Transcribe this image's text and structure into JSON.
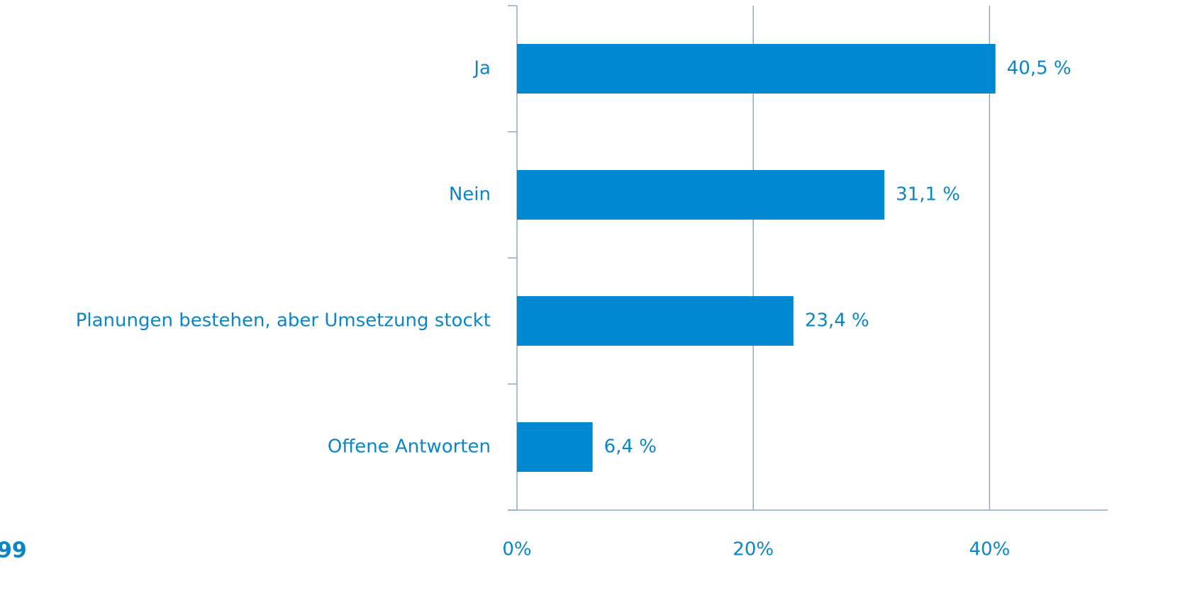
{
  "chart_data": {
    "type": "bar",
    "orientation": "horizontal",
    "categories": [
      "Ja",
      "Nein",
      "Planungen bestehen, aber Umsetzung stockt",
      "Offene Antworten"
    ],
    "values": [
      40.5,
      31.1,
      23.4,
      6.4
    ],
    "value_labels": [
      "40,5 %",
      "31,1 %",
      "23,4 %",
      "6,4 %"
    ],
    "color": "#0089d1",
    "xlim": [
      0,
      50
    ],
    "xticks": [
      {
        "value": 0,
        "label": "0%"
      },
      {
        "value": 20,
        "label": "20%"
      },
      {
        "value": 40,
        "label": "40%"
      }
    ],
    "grid": true,
    "page_number": "99"
  }
}
